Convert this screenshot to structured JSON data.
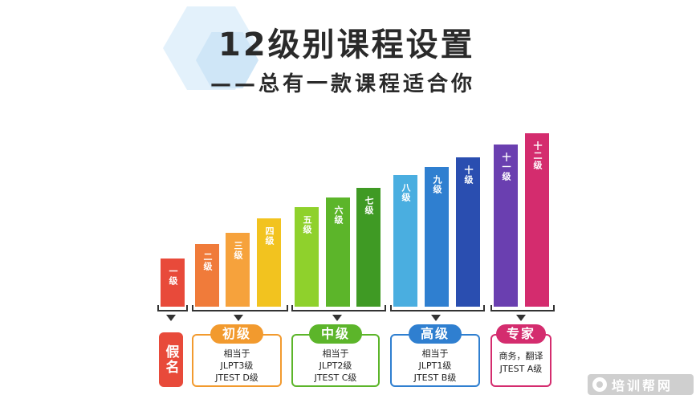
{
  "header": {
    "title": "12级别课程设置",
    "subtitle": "——总有一款课程适合你"
  },
  "levels": [
    {
      "label": "一级",
      "color": "#e84a3a"
    },
    {
      "label": "二级",
      "color": "#f07b3a"
    },
    {
      "label": "三级",
      "color": "#f6a23c"
    },
    {
      "label": "四级",
      "color": "#f2c31f"
    },
    {
      "label": "五级",
      "color": "#8fd12c"
    },
    {
      "label": "六级",
      "color": "#5cb52a"
    },
    {
      "label": "七级",
      "color": "#3f9a24"
    },
    {
      "label": "八级",
      "color": "#4aaee0"
    },
    {
      "label": "九级",
      "color": "#2f7fd0"
    },
    {
      "label": "十级",
      "color": "#2a4eb0"
    },
    {
      "label": "十一级",
      "color": "#6a3fb0"
    },
    {
      "label": "十二级",
      "color": "#d42c6e"
    }
  ],
  "groups": {
    "kana": {
      "label": "假名",
      "color": "#e84a3a"
    },
    "beginner": {
      "label": "初级",
      "line1": "相当于",
      "line2": "JLPT3级",
      "line3": "JTEST D级",
      "color": "#f29a2e"
    },
    "intermediate": {
      "label": "中级",
      "line1": "相当于",
      "line2": "JLPT2级",
      "line3": "JTEST C级",
      "color": "#5cb52a"
    },
    "advanced": {
      "label": "高级",
      "line1": "相当于",
      "line2": "JLPT1级",
      "line3": "JTEST B级",
      "color": "#2f7fd0"
    },
    "expert": {
      "label": "专家",
      "line1": "商务，翻译",
      "line2": "JTEST A级",
      "color": "#d42c6e"
    }
  },
  "watermark": {
    "text": "培训帮网"
  }
}
